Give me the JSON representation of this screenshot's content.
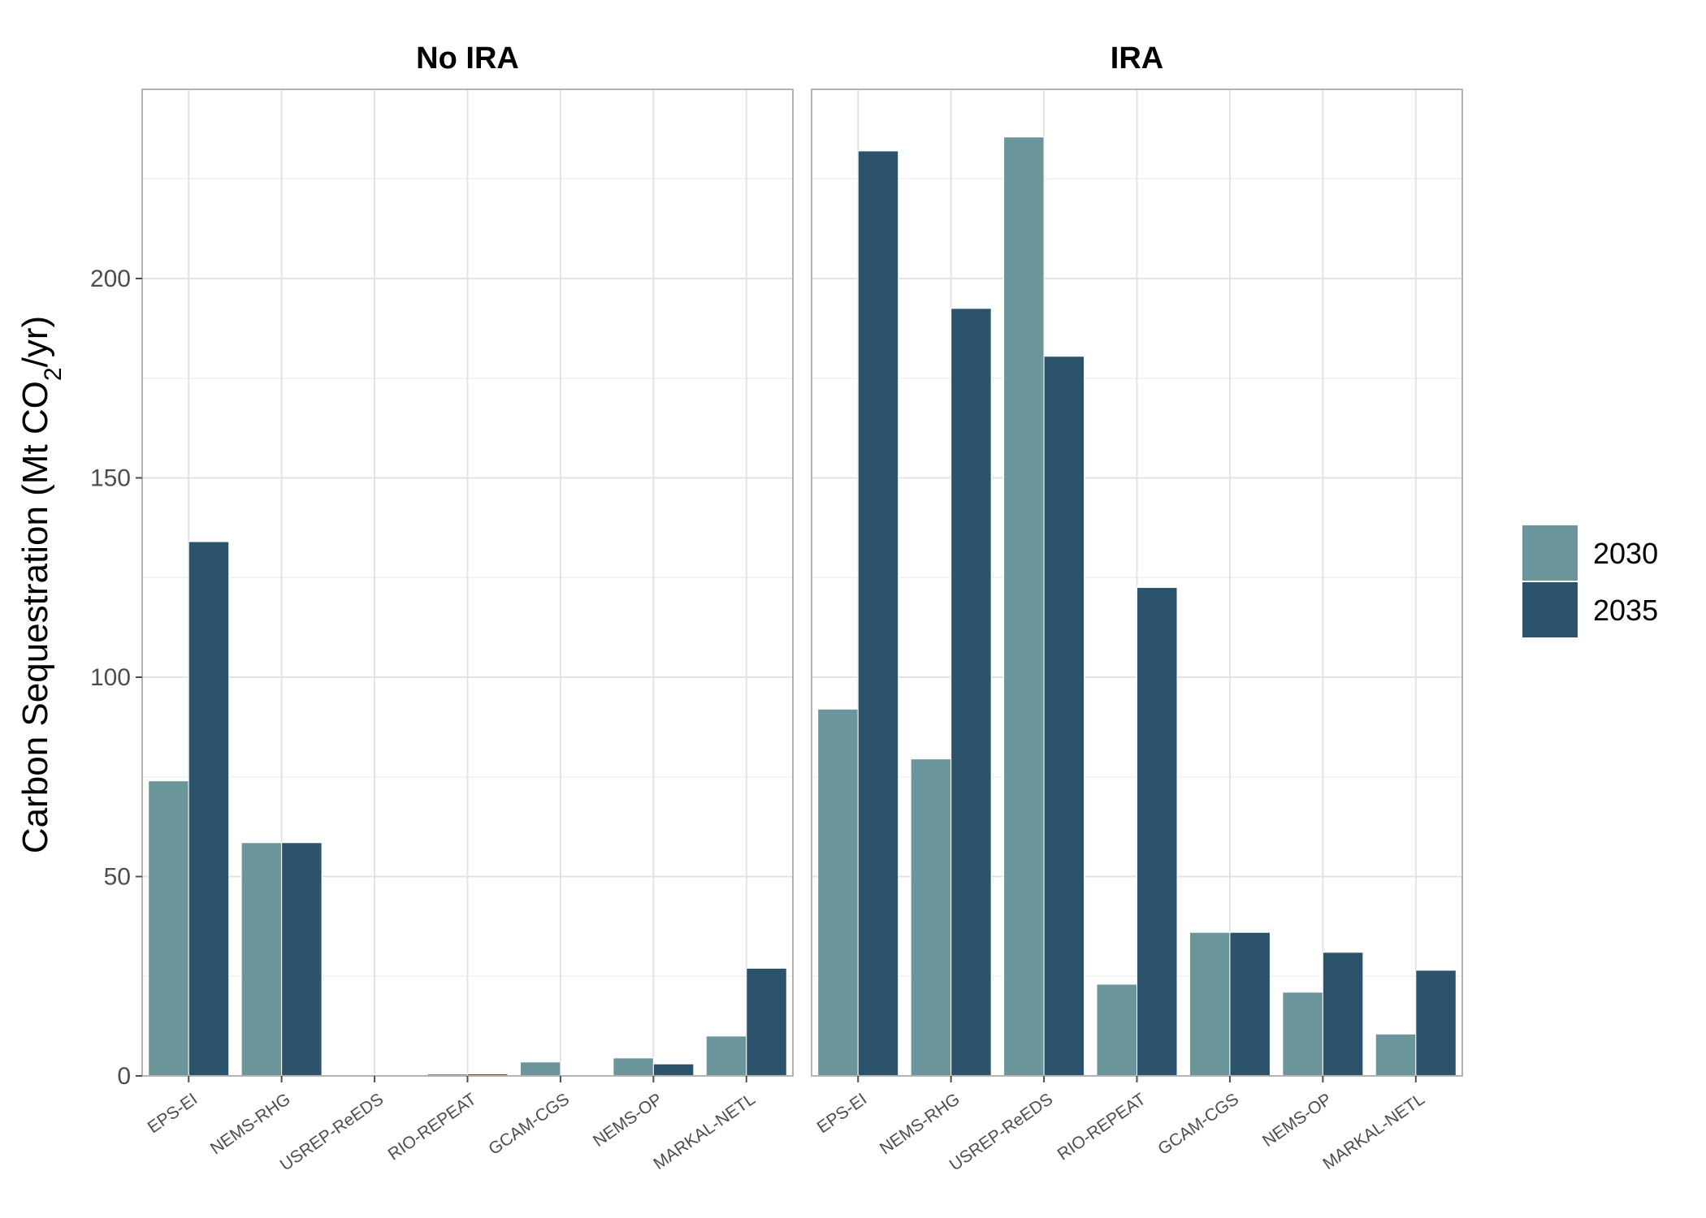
{
  "chart_data": {
    "type": "bar",
    "ylabel": {
      "prefix": "Carbon Sequestration (Mt CO",
      "subscript": "2",
      "suffix": "/yr)"
    },
    "ylim": [
      0,
      240
    ],
    "yticks": [
      0,
      50,
      100,
      150,
      200
    ],
    "grid": true,
    "legend_position": "right",
    "categories": [
      "EPS-EI",
      "NEMS-RHG",
      "USREP-ReEDS",
      "RIO-REPEAT",
      "GCAM-CGS",
      "NEMS-OP",
      "MARKAL-NETL"
    ],
    "series": [
      {
        "name": "2030",
        "color": "#6a969b"
      },
      {
        "name": "2035",
        "color": "#2b546c"
      }
    ],
    "panels": [
      {
        "title": "No IRA",
        "values": {
          "2030": [
            74,
            58.5,
            0,
            0.5,
            3.5,
            4.5,
            10
          ],
          "2035": [
            134,
            58.5,
            0,
            0.5,
            0,
            3,
            27
          ]
        }
      },
      {
        "title": "IRA",
        "values": {
          "2030": [
            92,
            79.5,
            235.5,
            23,
            36,
            21,
            10.5
          ],
          "2035": [
            232,
            192.5,
            180.5,
            122.5,
            36,
            31,
            26.5
          ]
        }
      }
    ]
  }
}
